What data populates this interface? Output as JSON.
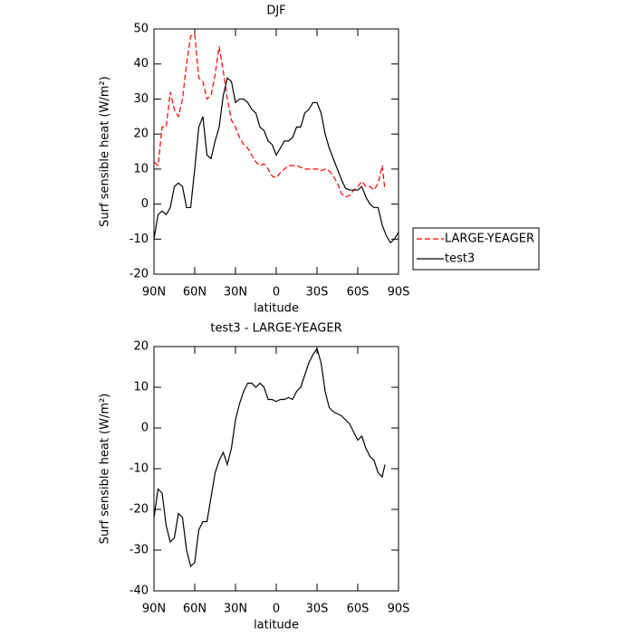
{
  "chart_data": [
    {
      "type": "line",
      "title": "DJF",
      "x_label": "latitude",
      "y_label": "Surf sensible heat (W/m²)",
      "xlim": [
        90,
        -90
      ],
      "xticks": [
        {
          "value": 90,
          "label": "90N"
        },
        {
          "value": 60,
          "label": "60N"
        },
        {
          "value": 30,
          "label": "30N"
        },
        0,
        {
          "value": -30,
          "label": "30S"
        },
        {
          "value": -60,
          "label": "60S"
        },
        {
          "value": -90,
          "label": "90S"
        }
      ],
      "ylim": [
        -20,
        50
      ],
      "yticks": [
        -20,
        -10,
        0,
        10,
        20,
        30,
        40,
        50
      ],
      "legend": "right",
      "series": [
        {
          "name": "LARGE-YEAGER",
          "color": "#ff0000",
          "line_style": "dashed",
          "x": [
            90,
            87,
            84,
            81,
            78,
            75,
            72,
            69,
            66,
            63,
            60,
            57,
            54,
            51,
            48,
            45,
            42,
            39,
            36,
            33,
            30,
            27,
            24,
            21,
            18,
            15,
            12,
            9,
            6,
            3,
            0,
            -3,
            -6,
            -9,
            -12,
            -15,
            -18,
            -21,
            -24,
            -27,
            -30,
            -33,
            -36,
            -39,
            -42,
            -45,
            -48,
            -51,
            -54,
            -57,
            -60,
            -63,
            -66,
            -69,
            -72,
            -75,
            -78,
            -80
          ],
          "values": [
            12,
            11,
            22,
            22,
            32,
            27,
            25,
            30,
            40,
            48,
            48.5,
            36,
            35,
            30,
            31,
            37,
            45,
            38,
            30,
            24,
            22,
            19,
            17,
            16,
            14,
            12,
            11,
            11.5,
            10,
            8,
            7.5,
            9,
            10,
            11,
            11,
            11,
            10.5,
            10,
            10,
            10,
            10,
            9.5,
            10,
            9.5,
            8,
            6,
            3,
            2,
            2.5,
            4,
            5,
            6.5,
            5,
            5,
            4,
            6,
            11,
            4
          ]
        },
        {
          "name": "test3",
          "color": "#000000",
          "line_style": "solid",
          "x": [
            90,
            87,
            84,
            81,
            78,
            75,
            72,
            69,
            66,
            63,
            60,
            57,
            54,
            51,
            48,
            45,
            42,
            39,
            36,
            33,
            30,
            27,
            24,
            21,
            18,
            15,
            12,
            9,
            6,
            3,
            0,
            -3,
            -6,
            -9,
            -12,
            -15,
            -18,
            -21,
            -24,
            -27,
            -30,
            -33,
            -36,
            -39,
            -42,
            -45,
            -48,
            -51,
            -54,
            -57,
            -60,
            -63,
            -66,
            -69,
            -72,
            -75,
            -78,
            -81,
            -84,
            -87,
            -90
          ],
          "values": [
            -10,
            -3,
            -2,
            -3,
            -1,
            5,
            6,
            5,
            -1,
            -1,
            10,
            22,
            25,
            14,
            13,
            18,
            22,
            31,
            36,
            35,
            29,
            30,
            30,
            29,
            27,
            26,
            22,
            21,
            18,
            17,
            14,
            16,
            18,
            18,
            19,
            22,
            22,
            26,
            27,
            29,
            29,
            26,
            20,
            16,
            13,
            10,
            7,
            4.5,
            4,
            4,
            4,
            5,
            2,
            0,
            -1,
            -1,
            -6,
            -9,
            -11,
            -10,
            -8
          ]
        }
      ]
    },
    {
      "type": "line",
      "title": "test3 - LARGE-YEAGER",
      "x_label": "latitude",
      "y_label": "Surf sensible heat (W/m²)",
      "xlim": [
        90,
        -90
      ],
      "xticks": [
        {
          "value": 90,
          "label": "90N"
        },
        {
          "value": 60,
          "label": "60N"
        },
        {
          "value": 30,
          "label": "30N"
        },
        0,
        {
          "value": -30,
          "label": "30S"
        },
        {
          "value": -60,
          "label": "60S"
        },
        {
          "value": -90,
          "label": "90S"
        }
      ],
      "ylim": [
        -40,
        20
      ],
      "yticks": [
        -40,
        -30,
        -20,
        -10,
        0,
        10,
        20
      ],
      "series": [
        {
          "color": "#000000",
          "line_style": "solid",
          "x": [
            90,
            87,
            84,
            81,
            78,
            75,
            72,
            69,
            66,
            63,
            60,
            57,
            54,
            51,
            48,
            45,
            42,
            39,
            36,
            33,
            30,
            27,
            24,
            21,
            18,
            15,
            12,
            9,
            6,
            3,
            0,
            -3,
            -6,
            -9,
            -12,
            -15,
            -18,
            -21,
            -24,
            -27,
            -30,
            -33,
            -36,
            -39,
            -42,
            -45,
            -48,
            -51,
            -54,
            -57,
            -60,
            -63,
            -66,
            -69,
            -72,
            -75,
            -78,
            -80
          ],
          "values": [
            -22,
            -15,
            -16,
            -24,
            -28,
            -27,
            -21,
            -22,
            -30,
            -34,
            -33,
            -25,
            -23,
            -23,
            -17,
            -11,
            -8,
            -6,
            -9,
            -5,
            2,
            6,
            9,
            11,
            11,
            10,
            11,
            10,
            7,
            7,
            6.5,
            7,
            7,
            7.5,
            7,
            9,
            10,
            13,
            16,
            18,
            19.5,
            16,
            9,
            5,
            4,
            3.5,
            3,
            2,
            1,
            -1,
            -3,
            -2,
            -5,
            -7,
            -8,
            -11,
            -12,
            -9
          ]
        }
      ]
    }
  ]
}
